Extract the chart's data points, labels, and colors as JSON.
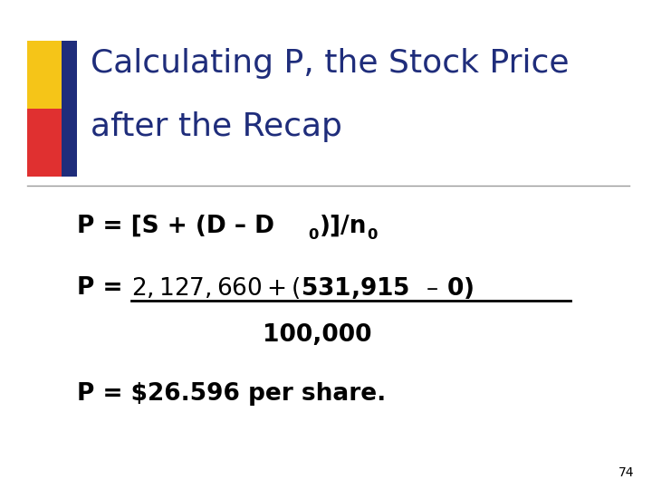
{
  "title_line1": "Calculating P, the Stock Price",
  "title_line2": "after the Recap",
  "title_color": "#1F2D7B",
  "title_fontsize": 26,
  "background_color": "#FFFFFF",
  "line_color": "#999999",
  "body_fontsize": 19,
  "body_color": "#000000",
  "page_number": "74",
  "page_number_fontsize": 10,
  "page_number_color": "#000000",
  "decorator_gold": "#F5C518",
  "decorator_red": "#E03030",
  "decorator_blue": "#1F2D7B"
}
